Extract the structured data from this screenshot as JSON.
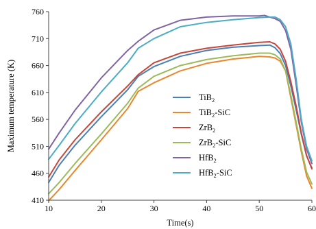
{
  "chart_data": {
    "type": "line",
    "title": "",
    "xlabel": "Time(s)",
    "ylabel": "Maximum temperature (K)",
    "xlim": [
      10,
      60
    ],
    "ylim": [
      410,
      760
    ],
    "x_ticks": [
      10,
      20,
      30,
      40,
      50,
      60
    ],
    "y_ticks": [
      410,
      460,
      510,
      560,
      610,
      660,
      710,
      760
    ],
    "grid": false,
    "legend_position": "center-right",
    "series": [
      {
        "name": "TiB2",
        "name_base": "TiB",
        "name_sub": "2",
        "name_suffix": "",
        "color": "#4a7fb6",
        "x": [
          10,
          12,
          15,
          20,
          25,
          27,
          30,
          35,
          40,
          45,
          50,
          52,
          53,
          54,
          55,
          56,
          57,
          58,
          59,
          60
        ],
        "y": [
          443,
          475,
          512,
          565,
          615,
          640,
          658,
          677,
          688,
          694,
          697,
          698,
          693,
          682,
          660,
          622,
          578,
          532,
          492,
          470
        ]
      },
      {
        "name": "TiB2-SiC",
        "name_base": "TiB",
        "name_sub": "2",
        "name_suffix": "-SiC",
        "color": "#e8872c",
        "x": [
          10,
          12,
          15,
          20,
          25,
          27,
          30,
          35,
          40,
          45,
          50,
          52,
          53,
          54,
          55,
          56,
          57,
          58,
          59,
          60
        ],
        "y": [
          409,
          430,
          465,
          522,
          580,
          612,
          628,
          650,
          664,
          672,
          677,
          676,
          674,
          668,
          650,
          600,
          550,
          500,
          455,
          432
        ]
      },
      {
        "name": "ZrB2",
        "name_base": "ZrB",
        "name_sub": "2",
        "name_suffix": "",
        "color": "#c8453a",
        "x": [
          10,
          12,
          15,
          20,
          25,
          27,
          30,
          35,
          40,
          45,
          50,
          52,
          53,
          54,
          55,
          56,
          57,
          58,
          59,
          60
        ],
        "y": [
          453,
          485,
          522,
          574,
          622,
          643,
          665,
          683,
          692,
          698,
          703,
          704,
          700,
          690,
          668,
          630,
          585,
          535,
          493,
          468
        ]
      },
      {
        "name": "ZrB2-SiC",
        "name_base": "ZrB",
        "name_sub": "2",
        "name_suffix": "-SiC",
        "color": "#9bbb59",
        "x": [
          10,
          12,
          15,
          20,
          25,
          27,
          30,
          35,
          40,
          45,
          50,
          52,
          53,
          54,
          55,
          56,
          57,
          58,
          59,
          60
        ],
        "y": [
          422,
          443,
          478,
          533,
          590,
          618,
          640,
          660,
          671,
          678,
          683,
          683,
          680,
          672,
          650,
          605,
          555,
          505,
          462,
          440
        ]
      },
      {
        "name": "HfB2",
        "name_base": "HfB",
        "name_sub": "2",
        "name_suffix": "",
        "color": "#8064a2",
        "x": [
          10,
          12,
          15,
          20,
          25,
          27,
          30,
          35,
          40,
          45,
          50,
          51,
          52,
          53,
          54,
          55,
          56,
          57,
          58,
          59,
          60
        ],
        "y": [
          505,
          535,
          577,
          637,
          688,
          705,
          726,
          744,
          750,
          752,
          752,
          753,
          750,
          747,
          742,
          725,
          690,
          625,
          555,
          505,
          478
        ]
      },
      {
        "name": "HfB2-SiC",
        "name_base": "HfB",
        "name_sub": "2",
        "name_suffix": "-SiC",
        "color": "#4bacc6",
        "x": [
          10,
          12,
          15,
          20,
          25,
          27,
          30,
          35,
          40,
          45,
          50,
          52,
          53,
          54,
          55,
          56,
          57,
          58,
          59,
          60
        ],
        "y": [
          486,
          512,
          552,
          611,
          665,
          692,
          710,
          732,
          740,
          745,
          749,
          750,
          750,
          745,
          732,
          700,
          635,
          560,
          510,
          483
        ]
      }
    ]
  }
}
